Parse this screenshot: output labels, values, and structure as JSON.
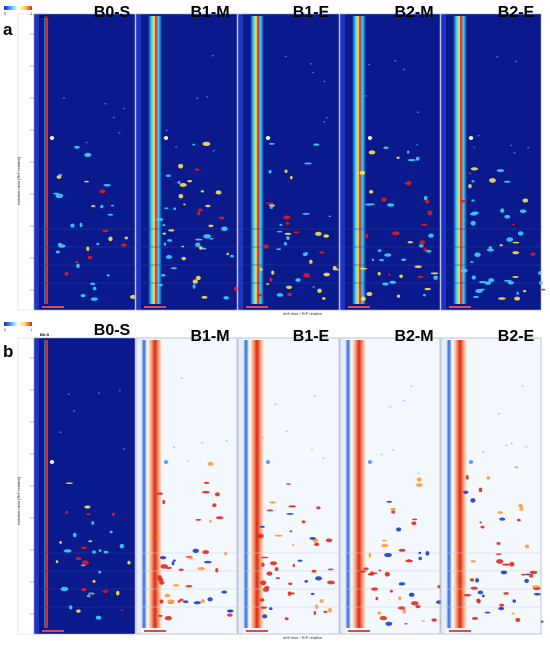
{
  "panels": [
    {
      "letter": "a",
      "mode": "raw"
    },
    {
      "letter": "b",
      "mode": "difference"
    }
  ],
  "scale_bar": {
    "start": "0",
    "end": "1"
  },
  "y_axis_label": "retention time [RIP relative]",
  "x_axis_label": "drift time / RIP relative",
  "colors": {
    "background_raw": "#0a1a8c",
    "background_diff": "#f4f8ff",
    "rip_red": "#e01c1c",
    "rip_yellow": "#ffe24a",
    "rip_cyan": "#3ad2ff",
    "positive": "#e02a1a",
    "negative": "#1a3cd0"
  },
  "chart_data": {
    "type": "heatmap",
    "title": "",
    "columns": [
      "B0-S",
      "B1-M",
      "B1-E",
      "B2-M",
      "B2-E"
    ],
    "reference_sample": "B0-S",
    "xlabel": "drift time / RIP relative",
    "ylabel": "retention time [RIP relative]",
    "color_scale": [
      "#1a2aa8",
      "#3fb4ff",
      "#ffffff",
      "#ffd34a",
      "#e0201c"
    ]
  }
}
